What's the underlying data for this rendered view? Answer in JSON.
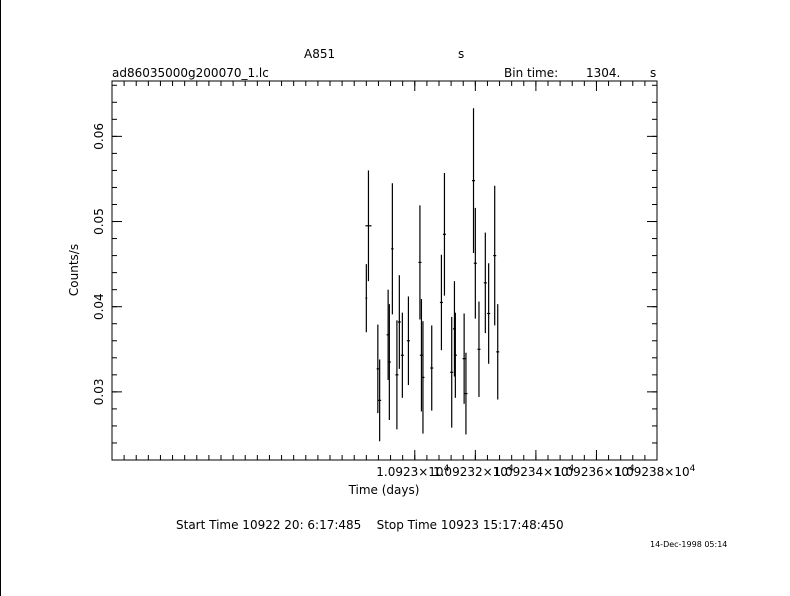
{
  "header": {
    "object": "A851",
    "units_s": "s",
    "filename": "ad86035000g200070_1.lc",
    "bin_label": "Bin time:",
    "bin_value": "1304.",
    "bin_unit": "s"
  },
  "footer": {
    "times": "Start Time 10922 20: 6:17:485    Stop Time 10923 15:17:48:450",
    "stamp": "14-Dec-1998 05:14"
  },
  "chart_data": {
    "type": "scatter",
    "title": "",
    "xlabel": "Time (days)",
    "ylabel": "Counts/s",
    "xlim": [
      10922.0,
      10923.8
    ],
    "ylim": [
      0.022,
      0.0665
    ],
    "x_ticks": [
      {
        "value": 10923.0,
        "label": "1.0923×10",
        "exp": "4"
      },
      {
        "value": 10923.2,
        "label": "1.09232×10",
        "exp": "4"
      },
      {
        "value": 10923.4,
        "label": "1.09234×10",
        "exp": "4"
      },
      {
        "value": 10923.6,
        "label": "1.09236×10",
        "exp": "4"
      },
      {
        "value": 10923.8,
        "label": "1.09238×10",
        "exp": "4"
      }
    ],
    "y_ticks": [
      {
        "value": 0.03,
        "label": "0.03"
      },
      {
        "value": 0.04,
        "label": "0.04"
      },
      {
        "value": 0.05,
        "label": "0.05"
      },
      {
        "value": 0.06,
        "label": "0.06"
      }
    ],
    "points": [
      {
        "x": 10922.84,
        "y": 0.041,
        "yerr": 0.004,
        "xerr": 0.003
      },
      {
        "x": 10922.847,
        "y": 0.0495,
        "yerr": 0.0065,
        "xerr": 0.01
      },
      {
        "x": 10922.878,
        "y": 0.0327,
        "yerr": 0.0052,
        "xerr": 0.004
      },
      {
        "x": 10922.884,
        "y": 0.029,
        "yerr": 0.0048,
        "xerr": 0.005
      },
      {
        "x": 10922.912,
        "y": 0.0367,
        "yerr": 0.0053,
        "xerr": 0.005
      },
      {
        "x": 10922.916,
        "y": 0.0335,
        "yerr": 0.0068,
        "xerr": 0.005
      },
      {
        "x": 10922.926,
        "y": 0.0468,
        "yerr": 0.0077,
        "xerr": 0.004
      },
      {
        "x": 10922.941,
        "y": 0.032,
        "yerr": 0.0064,
        "xerr": 0.005
      },
      {
        "x": 10922.949,
        "y": 0.0382,
        "yerr": 0.0055,
        "xerr": 0.005
      },
      {
        "x": 10922.959,
        "y": 0.0343,
        "yerr": 0.005,
        "xerr": 0.005
      },
      {
        "x": 10922.979,
        "y": 0.036,
        "yerr": 0.0052,
        "xerr": 0.005
      },
      {
        "x": 10923.017,
        "y": 0.0452,
        "yerr": 0.0067,
        "xerr": 0.005
      },
      {
        "x": 10923.022,
        "y": 0.0343,
        "yerr": 0.0066,
        "xerr": 0.005
      },
      {
        "x": 10923.027,
        "y": 0.0317,
        "yerr": 0.0066,
        "xerr": 0.005
      },
      {
        "x": 10923.056,
        "y": 0.0328,
        "yerr": 0.005,
        "xerr": 0.005
      },
      {
        "x": 10923.088,
        "y": 0.0405,
        "yerr": 0.0056,
        "xerr": 0.005
      },
      {
        "x": 10923.098,
        "y": 0.0485,
        "yerr": 0.0072,
        "xerr": 0.005
      },
      {
        "x": 10923.122,
        "y": 0.0323,
        "yerr": 0.0065,
        "xerr": 0.005
      },
      {
        "x": 10923.131,
        "y": 0.0374,
        "yerr": 0.0056,
        "xerr": 0.005
      },
      {
        "x": 10923.134,
        "y": 0.0343,
        "yerr": 0.005,
        "xerr": 0.005
      },
      {
        "x": 10923.163,
        "y": 0.0339,
        "yerr": 0.0053,
        "xerr": 0.005
      },
      {
        "x": 10923.169,
        "y": 0.0298,
        "yerr": 0.0048,
        "xerr": 0.005
      },
      {
        "x": 10923.194,
        "y": 0.0548,
        "yerr": 0.0085,
        "xerr": 0.005
      },
      {
        "x": 10923.2,
        "y": 0.0451,
        "yerr": 0.0065,
        "xerr": 0.005
      },
      {
        "x": 10923.212,
        "y": 0.035,
        "yerr": 0.0056,
        "xerr": 0.005
      },
      {
        "x": 10923.233,
        "y": 0.0428,
        "yerr": 0.0059,
        "xerr": 0.005
      },
      {
        "x": 10923.244,
        "y": 0.0392,
        "yerr": 0.0059,
        "xerr": 0.005
      },
      {
        "x": 10923.264,
        "y": 0.046,
        "yerr": 0.0082,
        "xerr": 0.005
      },
      {
        "x": 10923.274,
        "y": 0.0347,
        "yerr": 0.0056,
        "xerr": 0.005
      }
    ]
  }
}
